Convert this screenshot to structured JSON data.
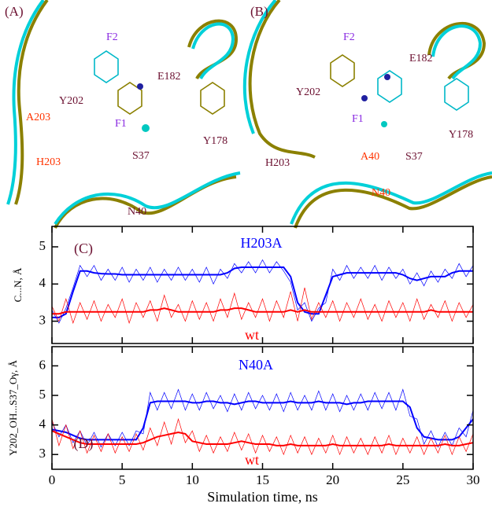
{
  "structures": [
    {
      "label": "(A)",
      "residues": [
        "F2",
        "E182",
        "Y202",
        "F1",
        "A203",
        "H203",
        "Y178",
        "S37",
        "N40"
      ]
    },
    {
      "label": "(B)",
      "residues": [
        "F2",
        "E182",
        "Y202",
        "F1",
        "H203",
        "A40",
        "S37",
        "N40",
        "Y178"
      ]
    }
  ],
  "chart_data": [
    {
      "type": "line",
      "panel_label": "(C)",
      "ylabel": "C...N, Å",
      "xlim": [
        0,
        30
      ],
      "xticks": [
        0,
        5,
        10,
        15,
        20,
        25,
        30
      ],
      "ylim": [
        2.4,
        5.55
      ],
      "yticks": [
        3,
        4,
        5
      ],
      "x": [
        0,
        0.5,
        1,
        1.5,
        2,
        2.5,
        3,
        3.5,
        4,
        4.5,
        5,
        5.5,
        6,
        6.5,
        7,
        7.5,
        8,
        8.5,
        9,
        9.5,
        10,
        10.5,
        11,
        11.5,
        12,
        12.5,
        13,
        13.5,
        14,
        14.5,
        15,
        15.5,
        16,
        16.5,
        17,
        17.5,
        18,
        18.5,
        19,
        19.5,
        20,
        20.5,
        21,
        21.5,
        22,
        22.5,
        23,
        23.5,
        24,
        24.5,
        25,
        25.5,
        26,
        26.5,
        27,
        27.5,
        28,
        28.5,
        29,
        29.5,
        30
      ],
      "series": [
        {
          "name": "H203A",
          "color": "#0000ff",
          "values": [
            3.3,
            2.95,
            3.35,
            3.9,
            4.5,
            4.2,
            4.5,
            4.1,
            4.4,
            4.1,
            4.45,
            4.05,
            4.4,
            4.1,
            4.45,
            4.05,
            4.4,
            4.1,
            4.45,
            4.1,
            4.4,
            4.05,
            4.45,
            4.0,
            4.4,
            4.15,
            4.55,
            4.3,
            4.6,
            4.3,
            4.65,
            4.3,
            4.6,
            4.35,
            4.05,
            3.3,
            3.5,
            3.0,
            3.35,
            3.5,
            4.4,
            4.1,
            4.5,
            4.15,
            4.45,
            4.15,
            4.5,
            4.1,
            4.45,
            4.15,
            4.4,
            4.0,
            4.3,
            3.95,
            4.35,
            4.05,
            4.4,
            4.15,
            4.55,
            4.2,
            4.5
          ],
          "smoothed": [
            3.1,
            3.1,
            3.2,
            3.8,
            4.35,
            4.35,
            4.3,
            4.28,
            4.27,
            4.27,
            4.25,
            4.25,
            4.25,
            4.25,
            4.25,
            4.25,
            4.25,
            4.25,
            4.25,
            4.25,
            4.25,
            4.25,
            4.25,
            4.25,
            4.25,
            4.3,
            4.42,
            4.45,
            4.45,
            4.45,
            4.45,
            4.45,
            4.45,
            4.45,
            4.2,
            3.5,
            3.25,
            3.2,
            3.2,
            3.7,
            4.2,
            4.25,
            4.3,
            4.3,
            4.3,
            4.3,
            4.3,
            4.3,
            4.3,
            4.3,
            4.25,
            4.15,
            4.1,
            4.15,
            4.2,
            4.2,
            4.2,
            4.3,
            4.35,
            4.35,
            4.35
          ]
        },
        {
          "name": "wt",
          "color": "#ff0000",
          "values": [
            3.4,
            3.0,
            3.6,
            2.95,
            3.5,
            3.05,
            3.55,
            3.0,
            3.45,
            3.1,
            3.6,
            2.95,
            3.5,
            3.1,
            3.55,
            3.0,
            3.7,
            3.1,
            3.45,
            3.0,
            3.55,
            3.05,
            3.5,
            3.0,
            3.6,
            3.1,
            3.75,
            3.05,
            3.5,
            3.1,
            3.6,
            3.0,
            3.55,
            3.1,
            3.8,
            3.0,
            3.9,
            3.05,
            3.5,
            3.1,
            3.55,
            3.0,
            3.5,
            3.1,
            3.6,
            3.05,
            3.45,
            3.0,
            3.55,
            3.1,
            3.5,
            3.0,
            3.6,
            3.05,
            3.45,
            3.1,
            3.55,
            3.0,
            3.5,
            3.1,
            3.45
          ],
          "smoothed": [
            3.2,
            3.2,
            3.25,
            3.25,
            3.25,
            3.25,
            3.25,
            3.25,
            3.25,
            3.25,
            3.25,
            3.25,
            3.25,
            3.25,
            3.3,
            3.3,
            3.35,
            3.3,
            3.25,
            3.25,
            3.25,
            3.25,
            3.25,
            3.25,
            3.3,
            3.3,
            3.35,
            3.35,
            3.3,
            3.25,
            3.25,
            3.25,
            3.25,
            3.25,
            3.3,
            3.25,
            3.3,
            3.25,
            3.25,
            3.25,
            3.25,
            3.25,
            3.25,
            3.25,
            3.25,
            3.25,
            3.25,
            3.25,
            3.25,
            3.25,
            3.25,
            3.25,
            3.25,
            3.25,
            3.3,
            3.25,
            3.25,
            3.25,
            3.25,
            3.25,
            3.25
          ]
        }
      ]
    },
    {
      "type": "line",
      "panel_label": "(D)",
      "ylabel": "Y202_OH...S37_Oγ, Å",
      "xlabel": "Simulation time, ns",
      "xlim": [
        0,
        30
      ],
      "xticks": [
        0,
        5,
        10,
        15,
        20,
        25,
        30
      ],
      "ylim": [
        2.5,
        6.65
      ],
      "yticks": [
        3,
        4,
        5,
        6
      ],
      "x": [
        0,
        0.5,
        1,
        1.5,
        2,
        2.5,
        3,
        3.5,
        4,
        4.5,
        5,
        5.5,
        6,
        6.5,
        7,
        7.5,
        8,
        8.5,
        9,
        9.5,
        10,
        10.5,
        11,
        11.5,
        12,
        12.5,
        13,
        13.5,
        14,
        14.5,
        15,
        15.5,
        16,
        16.5,
        17,
        17.5,
        18,
        18.5,
        19,
        19.5,
        20,
        20.5,
        21,
        21.5,
        22,
        22.5,
        23,
        23.5,
        24,
        24.5,
        25,
        25.5,
        26,
        26.5,
        27,
        27.5,
        28,
        28.5,
        29,
        29.5,
        30
      ],
      "series": [
        {
          "name": "N40A",
          "color": "#0000ff",
          "values": [
            4.1,
            3.6,
            4.0,
            3.4,
            3.8,
            3.3,
            3.75,
            3.25,
            3.7,
            3.3,
            3.75,
            3.3,
            3.8,
            3.7,
            5.1,
            4.5,
            5.1,
            4.55,
            5.2,
            4.5,
            5.05,
            4.5,
            5.1,
            4.55,
            5.0,
            4.45,
            5.05,
            4.5,
            5.1,
            4.55,
            5.0,
            4.5,
            5.05,
            4.45,
            5.1,
            4.5,
            5.0,
            4.5,
            5.15,
            4.5,
            5.05,
            4.45,
            5.0,
            4.5,
            5.05,
            4.5,
            5.1,
            4.55,
            5.1,
            4.5,
            5.2,
            4.3,
            4.2,
            3.35,
            3.8,
            3.25,
            3.75,
            3.3,
            3.9,
            3.6,
            4.5
          ],
          "smoothed": [
            3.85,
            3.8,
            3.75,
            3.65,
            3.55,
            3.5,
            3.5,
            3.5,
            3.5,
            3.5,
            3.5,
            3.5,
            3.5,
            3.9,
            4.75,
            4.8,
            4.8,
            4.8,
            4.8,
            4.8,
            4.75,
            4.75,
            4.8,
            4.8,
            4.75,
            4.75,
            4.7,
            4.75,
            4.8,
            4.8,
            4.75,
            4.75,
            4.75,
            4.75,
            4.8,
            4.75,
            4.75,
            4.75,
            4.8,
            4.75,
            4.75,
            4.75,
            4.7,
            4.75,
            4.75,
            4.8,
            4.8,
            4.8,
            4.8,
            4.8,
            4.8,
            4.6,
            3.9,
            3.6,
            3.55,
            3.5,
            3.5,
            3.5,
            3.6,
            3.9,
            4.2
          ]
        },
        {
          "name": "wt",
          "color": "#ff0000",
          "values": [
            4.2,
            3.3,
            4.0,
            3.2,
            3.8,
            3.05,
            3.65,
            3.1,
            3.7,
            3.05,
            3.6,
            3.1,
            3.7,
            3.15,
            3.9,
            3.3,
            4.1,
            3.35,
            4.2,
            3.4,
            3.8,
            3.1,
            3.65,
            3.05,
            3.6,
            3.1,
            3.75,
            3.15,
            3.7,
            3.05,
            3.65,
            3.1,
            3.6,
            3.0,
            3.65,
            3.05,
            3.6,
            3.0,
            3.55,
            3.05,
            3.65,
            3.0,
            3.6,
            3.05,
            3.55,
            3.0,
            3.6,
            3.05,
            3.65,
            3.0,
            3.55,
            3.05,
            3.6,
            3.0,
            3.55,
            3.05,
            3.65,
            3.0,
            3.6,
            3.1,
            3.7
          ],
          "smoothed": [
            3.8,
            3.7,
            3.6,
            3.5,
            3.4,
            3.35,
            3.35,
            3.35,
            3.35,
            3.35,
            3.35,
            3.35,
            3.35,
            3.4,
            3.5,
            3.6,
            3.65,
            3.7,
            3.75,
            3.7,
            3.45,
            3.4,
            3.35,
            3.35,
            3.35,
            3.35,
            3.4,
            3.45,
            3.4,
            3.35,
            3.35,
            3.35,
            3.3,
            3.3,
            3.35,
            3.3,
            3.3,
            3.3,
            3.3,
            3.3,
            3.35,
            3.3,
            3.3,
            3.3,
            3.3,
            3.3,
            3.3,
            3.3,
            3.35,
            3.3,
            3.3,
            3.3,
            3.3,
            3.3,
            3.3,
            3.3,
            3.35,
            3.3,
            3.3,
            3.35,
            3.4
          ]
        }
      ]
    }
  ]
}
